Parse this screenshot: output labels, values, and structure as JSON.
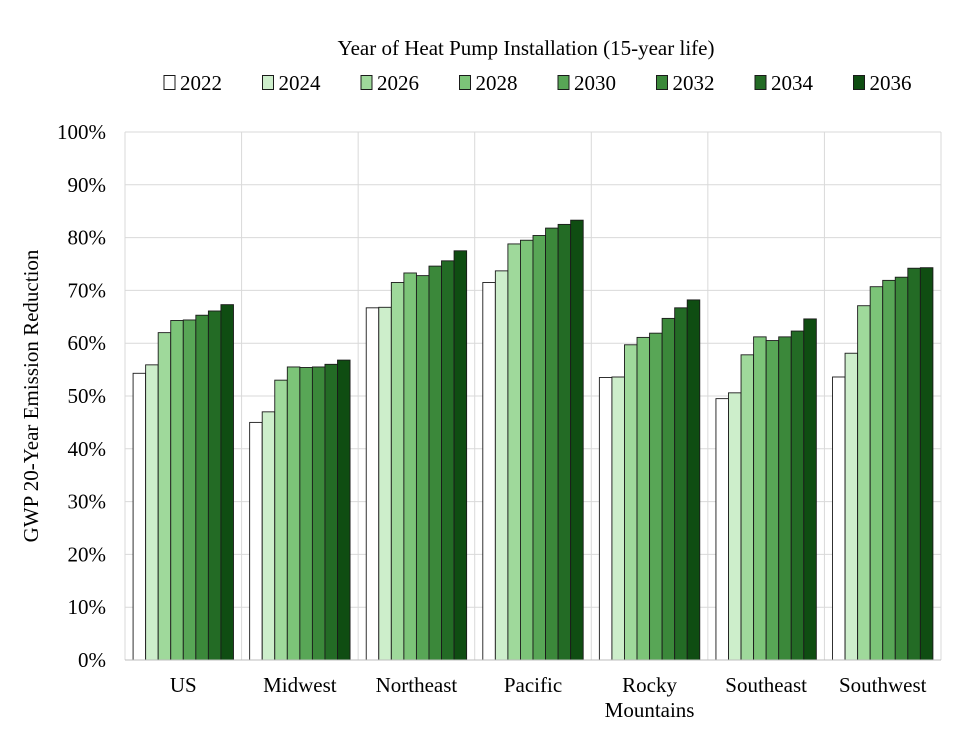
{
  "chart_data": {
    "type": "bar",
    "legend_title": "Year of Heat Pump Installation (15-year life)",
    "ylabel": "GWP 20-Year Emission Reduction",
    "xlabel": "",
    "ylim": [
      0,
      100
    ],
    "yticks": [
      0,
      10,
      20,
      30,
      40,
      50,
      60,
      70,
      80,
      90,
      100
    ],
    "ytick_labels": [
      "0%",
      "10%",
      "20%",
      "30%",
      "40%",
      "50%",
      "60%",
      "70%",
      "80%",
      "90%",
      "100%"
    ],
    "grid": true,
    "legend_position": "top",
    "categories": [
      "US",
      "Midwest",
      "Northeast",
      "Pacific",
      "Rocky Mountains",
      "Southeast",
      "Southwest"
    ],
    "category_label_lines": [
      [
        "US"
      ],
      [
        "Midwest"
      ],
      [
        "Northeast"
      ],
      [
        "Pacific"
      ],
      [
        "Rocky",
        "Mountains"
      ],
      [
        "Southeast"
      ],
      [
        "Southwest"
      ]
    ],
    "series": [
      {
        "name": "2022",
        "color": "#ffffff",
        "values": [
          54.3,
          45.0,
          66.7,
          71.5,
          53.5,
          49.5,
          53.6
        ]
      },
      {
        "name": "2024",
        "color": "#cdeecb",
        "values": [
          55.9,
          47.0,
          66.8,
          73.7,
          53.6,
          50.6,
          58.1
        ]
      },
      {
        "name": "2026",
        "color": "#9fd99b",
        "values": [
          62.0,
          53.0,
          71.5,
          78.8,
          59.7,
          57.8,
          67.1
        ]
      },
      {
        "name": "2028",
        "color": "#7cc478",
        "values": [
          64.3,
          55.5,
          73.3,
          79.5,
          61.1,
          61.2,
          70.7
        ]
      },
      {
        "name": "2030",
        "color": "#58a656",
        "values": [
          64.4,
          55.4,
          72.8,
          80.4,
          61.9,
          60.5,
          71.9
        ]
      },
      {
        "name": "2032",
        "color": "#3b883a",
        "values": [
          65.3,
          55.5,
          74.6,
          81.8,
          64.7,
          61.2,
          72.5
        ]
      },
      {
        "name": "2034",
        "color": "#236b25",
        "values": [
          66.1,
          56.0,
          75.6,
          82.5,
          66.7,
          62.3,
          74.2
        ]
      },
      {
        "name": "2036",
        "color": "#0f4d12",
        "values": [
          67.3,
          56.8,
          77.5,
          83.3,
          68.2,
          64.6,
          74.3
        ]
      }
    ]
  }
}
